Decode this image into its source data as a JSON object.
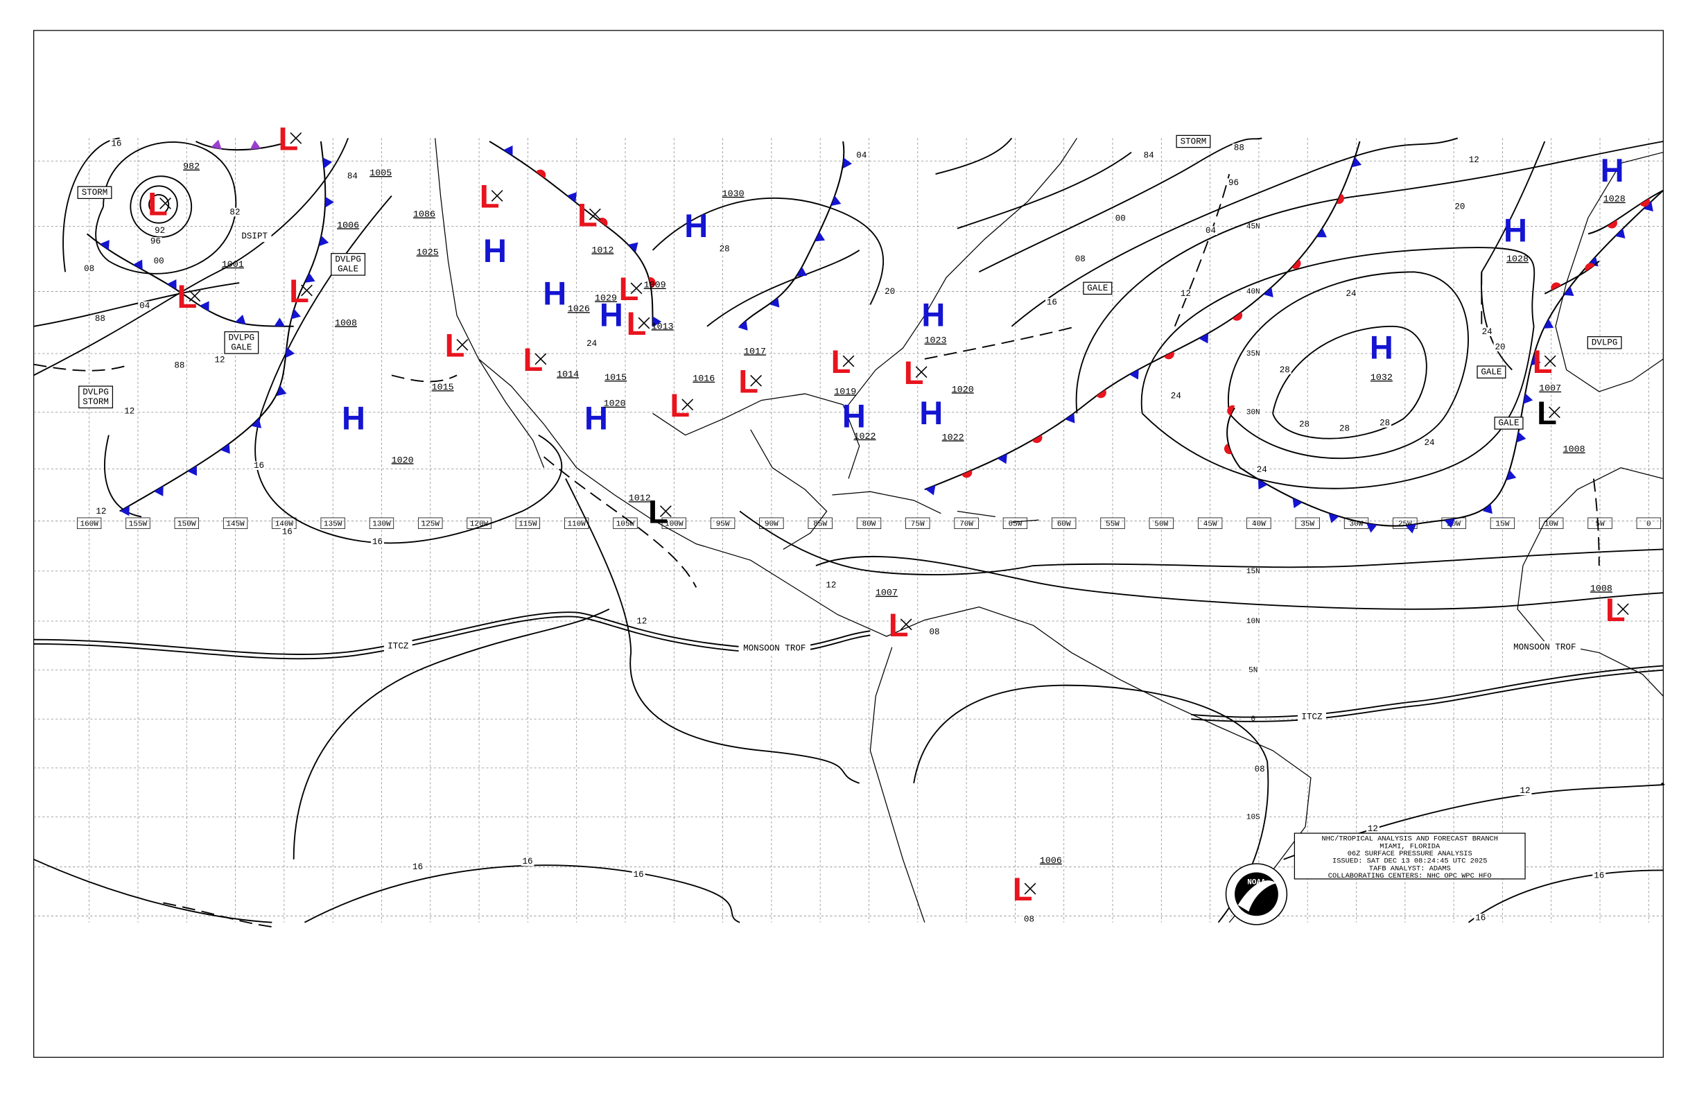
{
  "title_box": {
    "lines": [
      "NHC/TROPICAL ANALYSIS AND FORECAST BRANCH",
      "MIAMI, FLORIDA",
      "06Z SURFACE PRESSURE ANALYSIS",
      "ISSUED: SAT DEC 13 08:24:45 UTC 2025",
      "TAFB ANALYST: ADAMS",
      "COLLABORATING CENTERS: NHC OPC WPC HFO"
    ]
  },
  "logo": "NOAA",
  "longitude_labels": [
    "160W",
    "155W",
    "150W",
    "145W",
    "140W",
    "135W",
    "130W",
    "125W",
    "120W",
    "115W",
    "110W",
    "105W",
    "100W",
    "95W",
    "90W",
    "85W",
    "80W",
    "75W",
    "70W",
    "65W",
    "60W",
    "55W",
    "50W",
    "45W",
    "40W",
    "35W",
    "30W",
    "25W",
    "20W",
    "15W",
    "10W",
    "5W",
    "0"
  ],
  "latitude_labels": [
    "45N",
    "40N",
    "35N",
    "30N",
    "15N",
    "10N",
    "5N",
    "0",
    "10S"
  ],
  "pressure_centers": [
    {
      "symbol": "L",
      "color": "#e8141e",
      "pressure": "982"
    },
    {
      "symbol": "L",
      "color": "#e8141e",
      "pressure": "1001"
    },
    {
      "symbol": "L",
      "color": "#e8141e"
    },
    {
      "symbol": "L",
      "color": "#e8141e"
    },
    {
      "symbol": "L",
      "color": "#e8141e"
    },
    {
      "symbol": "L",
      "color": "#e8141e"
    },
    {
      "symbol": "L",
      "color": "#e8141e"
    },
    {
      "symbol": "L",
      "color": "#e8141e",
      "pressure": "1012"
    },
    {
      "symbol": "L",
      "color": "#e8141e",
      "pressure": "1009"
    },
    {
      "symbol": "L",
      "color": "#e8141e",
      "pressure": "1013"
    },
    {
      "symbol": "L",
      "color": "#e8141e"
    },
    {
      "symbol": "L",
      "color": "#e8141e",
      "pressure": "1016"
    },
    {
      "symbol": "L",
      "color": "#e8141e"
    },
    {
      "symbol": "L",
      "color": "#e8141e"
    },
    {
      "symbol": "L",
      "color": "#e8141e",
      "pressure": "1007"
    },
    {
      "symbol": "L",
      "color": "#e8141e",
      "pressure": "1006"
    },
    {
      "symbol": "L",
      "color": "#e8141e",
      "pressure": "1007"
    },
    {
      "symbol": "L",
      "color": "#e8141e",
      "pressure": "1008"
    },
    {
      "symbol": "L",
      "color": "#000000",
      "pressure": "1012"
    },
    {
      "symbol": "L",
      "color": "#000000",
      "pressure": "1008"
    },
    {
      "symbol": "H",
      "color": "#1414d2",
      "pressure": "1020"
    },
    {
      "symbol": "H",
      "color": "#1414d2",
      "pressure": "1025"
    },
    {
      "symbol": "H",
      "color": "#1414d2",
      "pressure": "1026"
    },
    {
      "symbol": "H",
      "color": "#1414d2",
      "pressure": "1029"
    },
    {
      "symbol": "H",
      "color": "#1414d2",
      "pressure": "1020"
    },
    {
      "symbol": "H",
      "color": "#1414d2",
      "pressure": "1030"
    },
    {
      "symbol": "H",
      "color": "#1414d2",
      "pressure": "1023"
    },
    {
      "symbol": "H",
      "color": "#1414d2",
      "pressure": "1022"
    },
    {
      "symbol": "H",
      "color": "#1414d2",
      "pressure": "1022"
    },
    {
      "symbol": "H",
      "color": "#1414d2",
      "pressure": "1032"
    },
    {
      "symbol": "H",
      "color": "#1414d2",
      "pressure": "1028"
    },
    {
      "symbol": "H",
      "color": "#1414d2",
      "pressure": "1028"
    }
  ],
  "pressure_labels": [
    "1005",
    "1006",
    "1008",
    "1015",
    "1017",
    "1019",
    "1015",
    "1014",
    "1086",
    "1020"
  ],
  "isobar_labels": [
    "16",
    "08",
    "04",
    "88",
    "88",
    "12",
    "12",
    "16",
    "16",
    "16",
    "12",
    "12",
    "12",
    "08",
    "08",
    "08",
    "16",
    "16",
    "16",
    "12",
    "12",
    "16",
    "16",
    "24",
    "28",
    "28",
    "28",
    "28",
    "24",
    "24",
    "20",
    "20",
    "12",
    "24",
    "24",
    "12",
    "16",
    "08",
    "04",
    "00",
    "96",
    "88",
    "84",
    "84",
    "82",
    "92",
    "96",
    "00",
    "24",
    "28",
    "04",
    "20"
  ],
  "feature_labels": [
    {
      "lines": [
        "STORM"
      ],
      "boxed": true
    },
    {
      "lines": [
        "STORM"
      ],
      "boxed": true
    },
    {
      "lines": [
        "DSIPT"
      ],
      "boxed": false
    },
    {
      "lines": [
        "DVLPG",
        "GALE"
      ],
      "boxed": true
    },
    {
      "lines": [
        "DVLPG",
        "GALE"
      ],
      "boxed": true
    },
    {
      "lines": [
        "DVLPG",
        "STORM"
      ],
      "boxed": true
    },
    {
      "lines": [
        "GALE"
      ],
      "boxed": true
    },
    {
      "lines": [
        "GALE"
      ],
      "boxed": true
    },
    {
      "lines": [
        "GALE"
      ],
      "boxed": true
    },
    {
      "lines": [
        "DVLPG"
      ],
      "boxed": true
    },
    {
      "lines": [
        "ITCZ"
      ],
      "boxed": false
    },
    {
      "lines": [
        "MONSOON TROF"
      ],
      "boxed": false
    },
    {
      "lines": [
        "ITCZ"
      ],
      "boxed": false
    },
    {
      "lines": [
        "MONSOON TROF"
      ],
      "boxed": false
    }
  ]
}
